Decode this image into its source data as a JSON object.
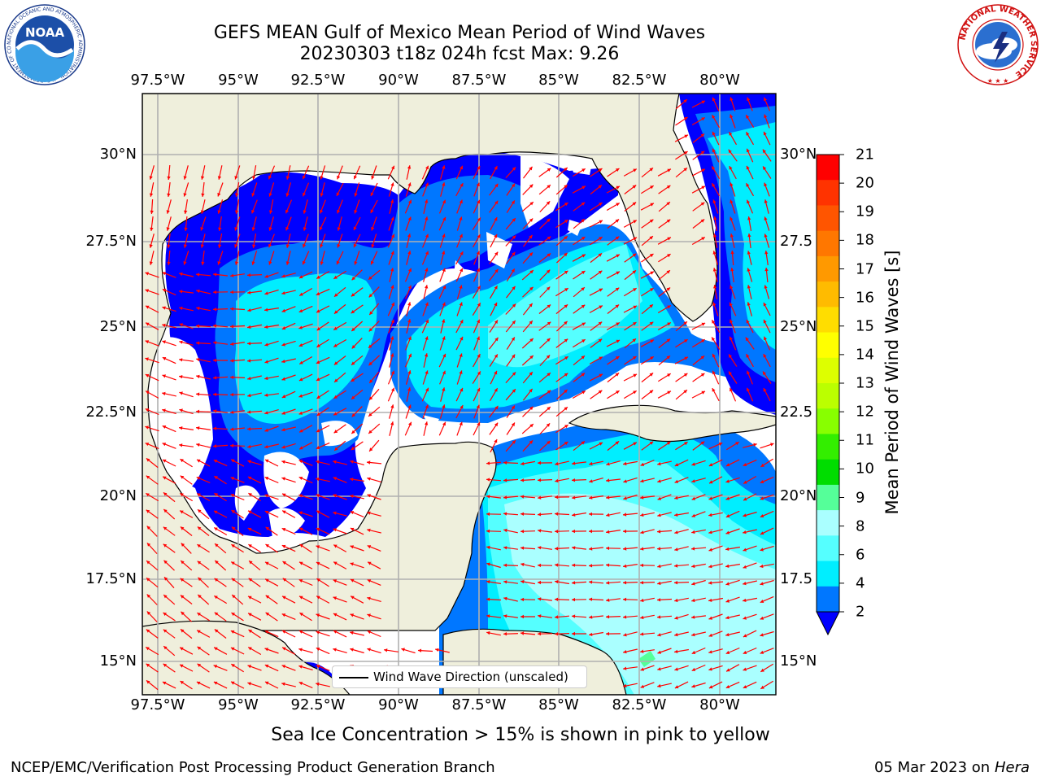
{
  "title": {
    "line1": "GEFS MEAN Gulf of Mexico Mean Period of Wind Waves",
    "line2": "20230303 t18z 024h fcst   Max: 9.26"
  },
  "axes": {
    "top_lon": [
      "97.5°W",
      "95°W",
      "92.5°W",
      "90°W",
      "87.5°W",
      "85°W",
      "82.5°W",
      "80°W"
    ],
    "bottom_lon": [
      "97.5°W",
      "95°W",
      "92.5°W",
      "90°W",
      "87.5°W",
      "85°W",
      "82.5°W",
      "80°W"
    ],
    "left_lat": [
      "30°N",
      "27.5°N",
      "25°N",
      "22.5°N",
      "20°N",
      "17.5°N",
      "15°N"
    ],
    "right_lat": [
      "30°N",
      "27.5",
      "25°N",
      "22.5",
      "20°N",
      "17.5",
      "15°N"
    ]
  },
  "legend": {
    "label": "Wind Wave Direction (unscaled)"
  },
  "colorbar": {
    "title": "Mean Period of Wind Waves [s]",
    "ticks": [
      "21",
      "20",
      "19",
      "18",
      "17",
      "16",
      "15",
      "14",
      "13",
      "12",
      "11",
      "10",
      "9",
      "8",
      "6",
      "4",
      "2"
    ],
    "colors": [
      "#ff0000",
      "#ff3300",
      "#ff5500",
      "#ff7700",
      "#ff9900",
      "#ffbb00",
      "#ffdd00",
      "#ffff00",
      "#ddff00",
      "#bbff00",
      "#88ff00",
      "#33ee00",
      "#00dd00",
      "#55ff99",
      "#aaffff",
      "#55ffff",
      "#00eeff",
      "#0077ff"
    ],
    "under_color": "#0000ff"
  },
  "map_colors": {
    "land": "#efefdc",
    "coast": "#000000",
    "grid": "#b0b0b0",
    "arrow": "#ff0000",
    "level_2_4": "#0000ff",
    "level_4_6": "#0077ff",
    "level_6_8": "#00eeff",
    "level_8_9": "#55ffff",
    "level_9_10": "#aaffff",
    "level_10_11": "#55ff99"
  },
  "logos": {
    "noaa": "NOAA",
    "noaa_ring": "NATIONAL OCEANIC AND ATMOSPHERIC ADMINISTRATION · U.S. DEPARTMENT OF COMMERCE",
    "nws_ring": "NATIONAL WEATHER SERVICE"
  },
  "footer": {
    "note": "Sea Ice Concentration > 15% is shown in pink to yellow",
    "left": "NCEP/EMC/Verification Post Processing Product Generation Branch",
    "right_date": "05 Mar 2023 on",
    "right_host": "Hera"
  }
}
